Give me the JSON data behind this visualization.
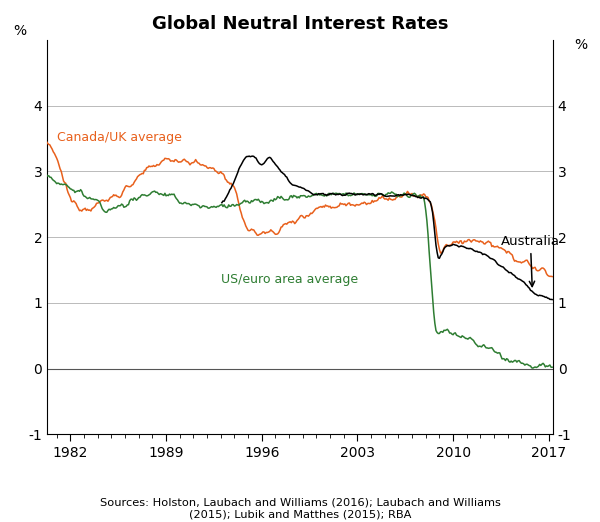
{
  "title": "Global Neutral Interest Rates",
  "ylabel_left": "%",
  "ylabel_right": "%",
  "source_text": "Sources: Holston, Laubach and Williams (2016); Laubach and Williams\n(2015); Lubik and Matthes (2015); RBA",
  "ylim": [
    -1,
    5
  ],
  "yticks": [
    -1,
    0,
    1,
    2,
    3,
    4
  ],
  "xticks": [
    1982,
    1989,
    1996,
    2003,
    2010,
    2017
  ],
  "xlim": [
    1980.3,
    2017.3
  ],
  "colors": {
    "australia": "#000000",
    "canada_uk": "#E8601C",
    "us_euro": "#2E7D32"
  },
  "label_canada_uk": "Canada/UK average",
  "label_us_euro": "US/euro area average",
  "label_australia": "Australia",
  "background_color": "#ffffff",
  "grid_color": "#b0b0b0"
}
